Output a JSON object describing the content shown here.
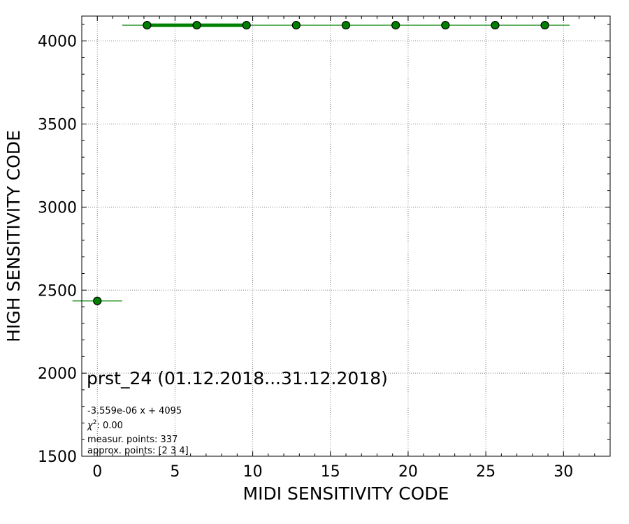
{
  "chart_data": {
    "type": "scatter",
    "title": "prst_24 (01.12.2018...31.12.2018)",
    "xlabel": "MIDI SENSITIVITY CODE",
    "ylabel": "HIGH SENSITIVITY CODE",
    "xlim": [
      -1,
      33
    ],
    "ylim": [
      1500,
      4150
    ],
    "xticks": [
      0,
      5,
      10,
      15,
      20,
      25,
      30
    ],
    "yticks": [
      1500,
      2000,
      2500,
      3000,
      3500,
      4000
    ],
    "grid": true,
    "point_color": "#008000",
    "line_color": "#008000",
    "points": [
      {
        "x": 0,
        "y": 2435,
        "xerr": 1.6,
        "yerr": 22
      },
      {
        "x": 3.2,
        "y": 4095,
        "xerr": 0,
        "yerr": 0
      },
      {
        "x": 6.4,
        "y": 4095,
        "xerr": 0,
        "yerr": 0
      },
      {
        "x": 9.6,
        "y": 4095,
        "xerr": 0,
        "yerr": 0
      },
      {
        "x": 12.8,
        "y": 4095,
        "xerr": 0,
        "yerr": 0
      },
      {
        "x": 16.0,
        "y": 4095,
        "xerr": 0,
        "yerr": 0
      },
      {
        "x": 19.2,
        "y": 4095,
        "xerr": 0,
        "yerr": 0
      },
      {
        "x": 22.4,
        "y": 4095,
        "xerr": 0,
        "yerr": 0
      },
      {
        "x": 25.6,
        "y": 4095,
        "xerr": 0,
        "yerr": 0
      },
      {
        "x": 28.8,
        "y": 4095,
        "xerr": 0,
        "yerr": 0
      }
    ],
    "fit_line": {
      "x": [
        1.6,
        30.4
      ],
      "y": [
        4095,
        4095
      ]
    },
    "thick_segment": {
      "x": [
        3.2,
        9.6
      ],
      "y": [
        4095,
        4095
      ]
    },
    "annotations": {
      "fit": "-3.559e-06 x + 4095",
      "chi2_value": ": 0.00",
      "measur": "measur. points: 337",
      "approx": "approx. points: [2 3 4]"
    }
  }
}
